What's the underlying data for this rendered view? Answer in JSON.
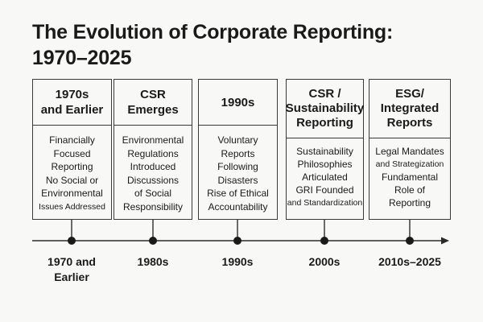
{
  "title": {
    "line1": "The Evolution of Corporate Reporting:",
    "line2": "1970–2025"
  },
  "cards": [
    {
      "heading": [
        "1970s",
        "and Earlier"
      ],
      "lines": [
        "Financially",
        "Focused",
        "Reporting",
        "No Social or",
        "Environmental",
        "Issues Addressed"
      ]
    },
    {
      "heading": [
        "CSR",
        "Emerges"
      ],
      "lines": [
        "Environmental",
        "Regulations",
        "Introduced",
        "Discussions",
        "of Social",
        "Responsibility"
      ]
    },
    {
      "heading": [
        "1990s"
      ],
      "lines": [
        "Voluntary",
        "Reports",
        "Following",
        "Disasters",
        "Rise of Ethical",
        "Accountability"
      ]
    },
    {
      "heading": [
        "CSR /",
        "Sustainability",
        "Reporting"
      ],
      "lines": [
        "Sustainability",
        "Philosophies",
        "Articulated",
        "GRI Founded",
        "and Standardization"
      ]
    },
    {
      "heading": [
        "ESG/",
        "Integrated",
        "Reports"
      ],
      "lines": [
        "Legal Mandates",
        "and Strategization",
        "Fundamental",
        "Role of",
        "Reporting"
      ]
    }
  ],
  "timeline": {
    "periods": [
      [
        "1970 and",
        "Earlier"
      ],
      [
        "1980s"
      ],
      [
        "1990s"
      ],
      [
        "2000s"
      ],
      [
        "2010s–2025"
      ]
    ]
  }
}
